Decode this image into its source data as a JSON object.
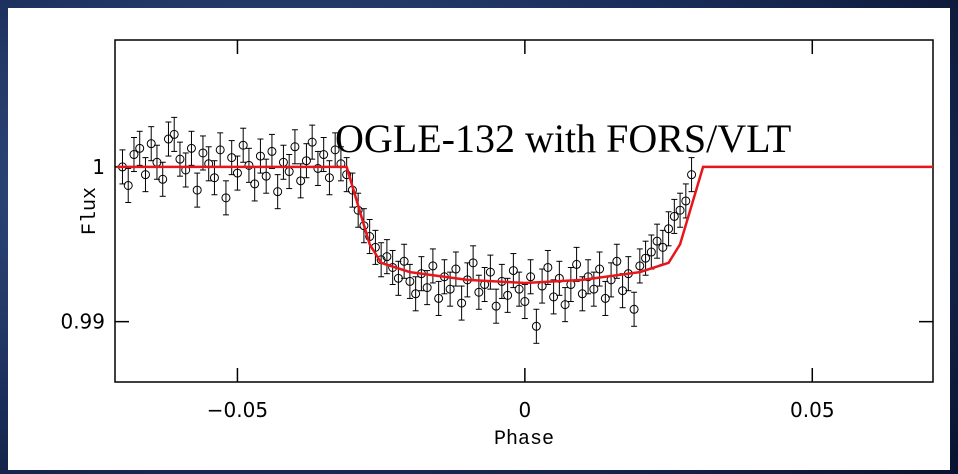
{
  "chart_data": {
    "type": "scatter",
    "annotation": "OGLE-132 with FORS/VLT",
    "x_label": "Phase",
    "y_label": "Flux",
    "xlim": [
      -0.0713,
      0.071
    ],
    "ylim": [
      0.9861,
      1.0082
    ],
    "xticks": [
      {
        "value": -0.05,
        "label": "−0.05"
      },
      0,
      0.05
    ],
    "yticks": [
      0.99,
      1
    ],
    "series": [
      {
        "type": "scatter",
        "color": "#000000",
        "error": 0.0011,
        "x": [
          -0.07,
          -0.069,
          -0.068,
          -0.067,
          -0.066,
          -0.065,
          -0.064,
          -0.063,
          -0.062,
          -0.061,
          -0.06,
          -0.059,
          -0.058,
          -0.057,
          -0.056,
          -0.055,
          -0.054,
          -0.053,
          -0.052,
          -0.051,
          -0.05,
          -0.049,
          -0.048,
          -0.047,
          -0.046,
          -0.045,
          -0.044,
          -0.043,
          -0.042,
          -0.041,
          -0.04,
          -0.039,
          -0.038,
          -0.037,
          -0.036,
          -0.035,
          -0.034,
          -0.033,
          -0.032,
          -0.031,
          -0.03,
          -0.029,
          -0.028,
          -0.027,
          -0.026,
          -0.025,
          -0.024,
          -0.023,
          -0.022,
          -0.021,
          -0.02,
          -0.019,
          -0.018,
          -0.017,
          -0.016,
          -0.015,
          -0.014,
          -0.013,
          -0.012,
          -0.011,
          -0.01,
          -0.009,
          -0.008,
          -0.007,
          -0.006,
          -0.005,
          -0.004,
          -0.003,
          -0.002,
          -0.001,
          0.0,
          0.001,
          0.002,
          0.003,
          0.004,
          0.005,
          0.006,
          0.007,
          0.008,
          0.009,
          0.01,
          0.011,
          0.012,
          0.013,
          0.014,
          0.015,
          0.016,
          0.017,
          0.018,
          0.019,
          0.02,
          0.021,
          0.022,
          0.023,
          0.024,
          0.025,
          0.026,
          0.027,
          0.028,
          0.029
        ],
        "values": [
          1.0,
          0.9988,
          1.0008,
          1.0012,
          0.9995,
          1.0015,
          1.0003,
          0.9992,
          1.0018,
          1.0021,
          1.0005,
          0.9998,
          1.0012,
          0.9985,
          1.0009,
          1.0002,
          0.9993,
          1.0011,
          0.998,
          1.0006,
          0.9996,
          1.0014,
          1.0001,
          0.9989,
          1.0007,
          0.9994,
          1.001,
          0.9984,
          1.0003,
          0.9997,
          1.0013,
          0.9991,
          1.0004,
          1.0016,
          0.9999,
          1.0008,
          0.9993,
          1.0011,
          1.0002,
          0.9995,
          0.9985,
          0.9972,
          0.9962,
          0.9955,
          0.9948,
          0.994,
          0.9942,
          0.9935,
          0.9928,
          0.9939,
          0.9926,
          0.9918,
          0.9931,
          0.9922,
          0.9936,
          0.9915,
          0.9929,
          0.9921,
          0.9934,
          0.9912,
          0.9927,
          0.9938,
          0.9919,
          0.9924,
          0.9932,
          0.991,
          0.9926,
          0.9917,
          0.9933,
          0.9921,
          0.9913,
          0.9929,
          0.9897,
          0.9923,
          0.9935,
          0.9916,
          0.9928,
          0.9911,
          0.9924,
          0.9937,
          0.9918,
          0.9929,
          0.9921,
          0.9934,
          0.9915,
          0.9927,
          0.9939,
          0.992,
          0.9931,
          0.9908,
          0.9936,
          0.9941,
          0.9945,
          0.9952,
          0.9948,
          0.996,
          0.9968,
          0.9972,
          0.9978,
          0.9995
        ]
      },
      {
        "type": "line",
        "color": "#e8161b",
        "x": [
          -0.071,
          -0.031,
          -0.029,
          -0.027,
          -0.025,
          -0.02,
          -0.01,
          0,
          0.01,
          0.02,
          0.025,
          0.027,
          0.029,
          0.031,
          0.071
        ],
        "values": [
          1,
          1,
          0.9975,
          0.995,
          0.9938,
          0.9932,
          0.9927,
          0.9925,
          0.9927,
          0.9932,
          0.9938,
          0.995,
          0.9975,
          1,
          1
        ]
      }
    ]
  }
}
